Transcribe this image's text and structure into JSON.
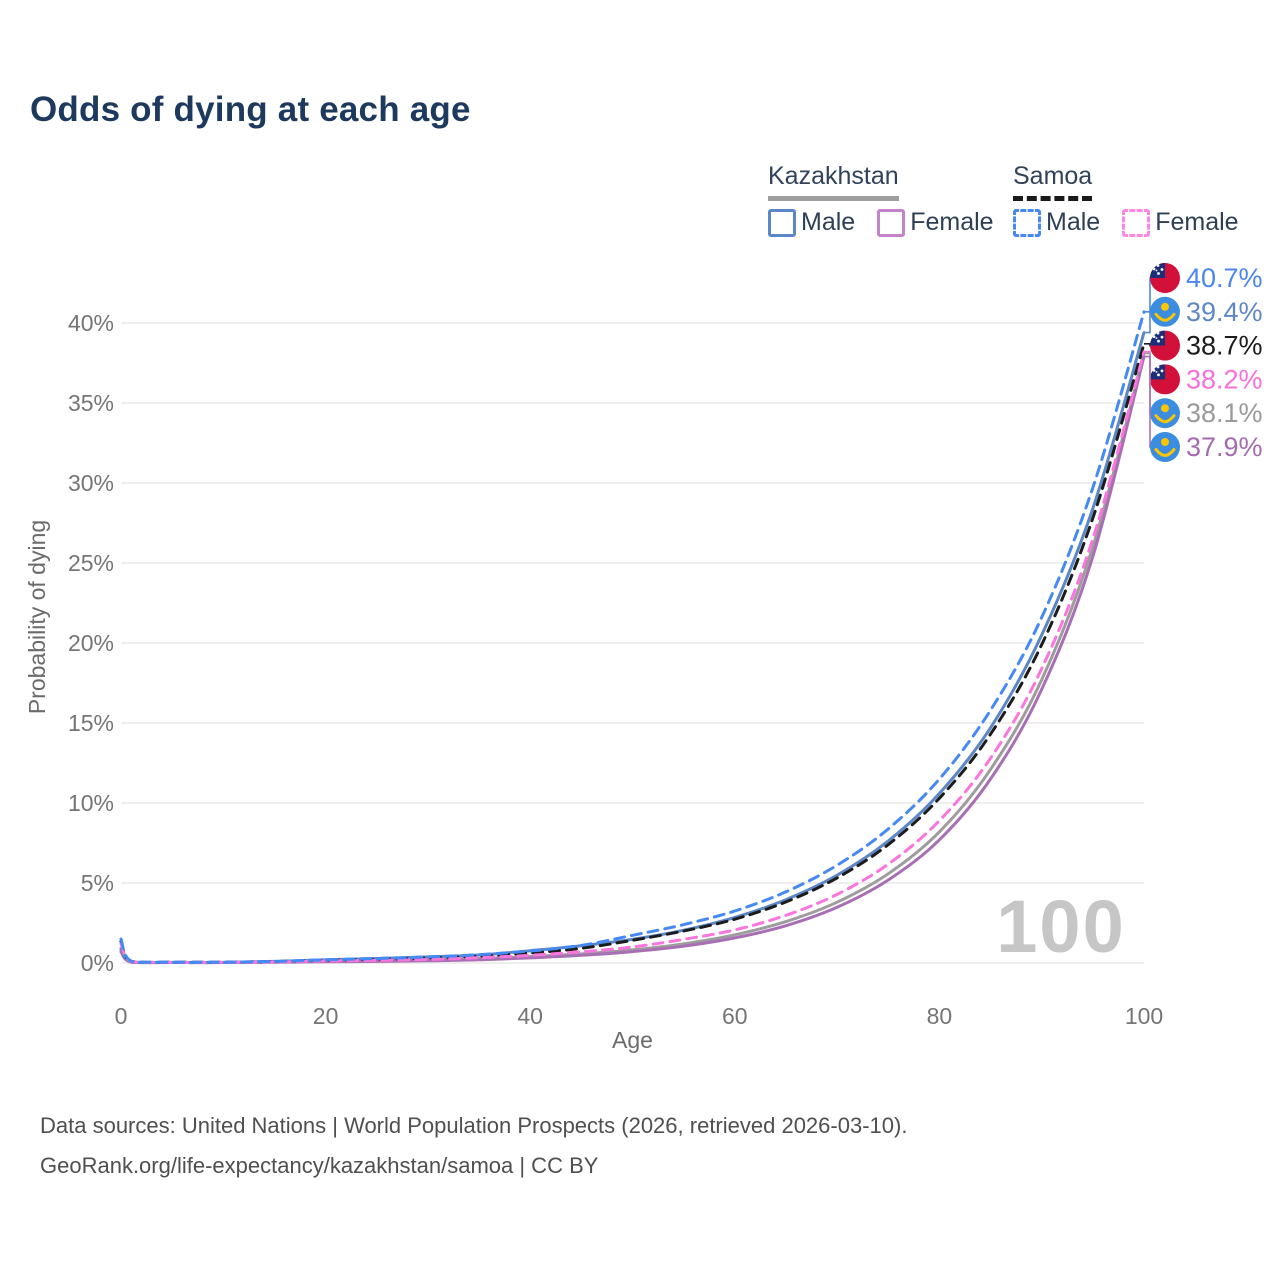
{
  "header": {
    "title": "Odds of dying at each age"
  },
  "legend": {
    "groups": [
      {
        "label": "Kazakhstan",
        "underline_style": "solid",
        "underline_color": "#9e9e9e",
        "items": [
          {
            "label": "Male",
            "color": "#5c87c6",
            "dashed": false
          },
          {
            "label": "Female",
            "color": "#c483c9",
            "dashed": false
          }
        ]
      },
      {
        "label": "Samoa",
        "underline_style": "dashed",
        "underline_color": "#1a1a1a",
        "items": [
          {
            "label": "Male",
            "color": "#4489f4",
            "dashed": true
          },
          {
            "label": "Female",
            "color": "#ff86e3",
            "dashed": true
          }
        ]
      }
    ]
  },
  "chart_data": {
    "type": "line",
    "title": "Odds of dying at each age",
    "xlabel": "Age",
    "ylabel": "Probability of dying",
    "xlim": [
      0,
      100
    ],
    "ylim": [
      0,
      40
    ],
    "grid": "horizontal-only",
    "legend_position": "top-right",
    "watermark": "100",
    "x_ticks": [
      {
        "value": 0,
        "label": "0"
      },
      {
        "value": 20,
        "label": "20"
      },
      {
        "value": 40,
        "label": "40"
      },
      {
        "value": 60,
        "label": "60"
      },
      {
        "value": 80,
        "label": "80"
      },
      {
        "value": 100,
        "label": "100"
      }
    ],
    "y_ticks": [
      {
        "value": 0,
        "label": "0%"
      },
      {
        "value": 5,
        "label": "5%"
      },
      {
        "value": 10,
        "label": "10%"
      },
      {
        "value": 15,
        "label": "15%"
      },
      {
        "value": 20,
        "label": "20%"
      },
      {
        "value": 25,
        "label": "25%"
      },
      {
        "value": 30,
        "label": "30%"
      },
      {
        "value": 35,
        "label": "35%"
      },
      {
        "value": 40,
        "label": "40%"
      }
    ],
    "x": [
      0,
      1,
      5,
      10,
      15,
      20,
      25,
      30,
      35,
      40,
      45,
      50,
      55,
      60,
      65,
      70,
      75,
      80,
      85,
      90,
      95,
      100
    ],
    "series": [
      {
        "name": "Samoa Male",
        "country": "Samoa",
        "sex": "male",
        "color": "#4489f4",
        "dashed": true,
        "flag": "samoa",
        "end_label": "40.7%",
        "label_color": "#4a86ef",
        "values": [
          1.5,
          0.12,
          0.05,
          0.05,
          0.1,
          0.2,
          0.28,
          0.38,
          0.52,
          0.75,
          1.1,
          1.73,
          2.4,
          3.25,
          4.45,
          6.11,
          8.38,
          11.5,
          15.8,
          21.6,
          29.7,
          40.7
        ]
      },
      {
        "name": "Kazakhstan Male",
        "country": "Kazakhstan",
        "sex": "male",
        "color": "#5c87c6",
        "dashed": false,
        "flag": "kazakhstan",
        "end_label": "39.4%",
        "label_color": "#5f87c5",
        "values": [
          0.9,
          0.07,
          0.04,
          0.04,
          0.1,
          0.2,
          0.28,
          0.38,
          0.5,
          0.77,
          1.08,
          1.48,
          2.05,
          2.85,
          3.96,
          5.49,
          7.63,
          10.6,
          14.7,
          20.5,
          28.4,
          39.4
        ]
      },
      {
        "name": "Samoa",
        "country": "Samoa",
        "sex": "all",
        "color": "#1c1c1c",
        "dashed": true,
        "flag": "samoa",
        "end_label": "38.7%",
        "label_color": "#1c1c1c",
        "values": [
          1.35,
          0.1,
          0.05,
          0.05,
          0.09,
          0.17,
          0.23,
          0.31,
          0.43,
          0.62,
          0.92,
          1.42,
          2.0,
          2.74,
          3.82,
          5.32,
          7.4,
          10.3,
          14.3,
          19.9,
          27.8,
          38.7
        ]
      },
      {
        "name": "Samoa Female",
        "country": "Samoa",
        "sex": "female",
        "color": "#fa75dd",
        "dashed": true,
        "flag": "samoa",
        "end_label": "38.2%",
        "label_color": "#fa6fda",
        "values": [
          1.2,
          0.09,
          0.04,
          0.04,
          0.07,
          0.13,
          0.17,
          0.22,
          0.33,
          0.48,
          0.7,
          1.0,
          1.48,
          2.07,
          2.98,
          4.29,
          6.18,
          8.9,
          12.8,
          18.4,
          26.5,
          38.2
        ]
      },
      {
        "name": "Kazakhstan",
        "country": "Kazakhstan",
        "sex": "all",
        "color": "#9d9d9d",
        "dashed": false,
        "flag": "kazakhstan",
        "end_label": "38.1%",
        "label_color": "#9a9a9a",
        "values": [
          0.8,
          0.06,
          0.03,
          0.03,
          0.07,
          0.13,
          0.17,
          0.22,
          0.28,
          0.4,
          0.57,
          0.82,
          1.2,
          1.76,
          2.59,
          3.8,
          5.58,
          8.2,
          12.1,
          17.7,
          26.0,
          38.1
        ]
      },
      {
        "name": "Kazakhstan Female",
        "country": "Kazakhstan",
        "sex": "female",
        "color": "#a96fb4",
        "dashed": false,
        "flag": "kazakhstan",
        "end_label": "37.9%",
        "label_color": "#a56bb0",
        "values": [
          0.7,
          0.05,
          0.03,
          0.03,
          0.05,
          0.08,
          0.1,
          0.14,
          0.2,
          0.32,
          0.48,
          0.71,
          1.05,
          1.57,
          2.33,
          3.48,
          5.19,
          7.7,
          11.5,
          17.1,
          25.4,
          37.9
        ]
      }
    ],
    "flag_colors": {
      "samoa_red": "#d21039",
      "samoa_blue": "#1c2e7a",
      "samoa_star": "#ffffff",
      "kazakhstan_blue": "#3b8de0",
      "kazakhstan_yellow": "#fdc500"
    }
  },
  "footer": {
    "line1": "Data sources: United Nations | World Population Prospects (2026, retrieved 2026-03-10).",
    "line2": "GeoRank.org/life-expectancy/kazakhstan/samoa | CC BY"
  }
}
